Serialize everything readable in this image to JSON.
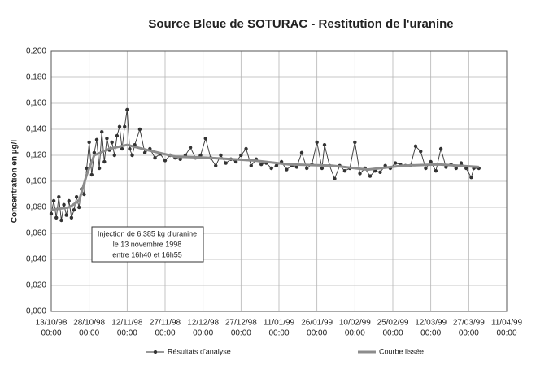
{
  "chart_data": {
    "type": "line",
    "title": "Source Bleue de SOTURAC - Restitution de l'uranine",
    "y_label": "Concentration en µg/l",
    "annotation": [
      "Injection de 6,385 kg d'uranine",
      "le 13 novembre 1998",
      "entre 16h40 et 16h55"
    ],
    "grid": true,
    "xlim": [
      "1998-10-13",
      "1999-04-11"
    ],
    "xticks": [
      {
        "value": "1998-10-13",
        "label": [
          "13/10/98",
          "00:00"
        ]
      },
      {
        "value": "1998-10-28",
        "label": [
          "28/10/98",
          "00:00"
        ]
      },
      {
        "value": "1998-11-12",
        "label": [
          "12/11/98",
          "00:00"
        ]
      },
      {
        "value": "1998-11-27",
        "label": [
          "27/11/98",
          "00:00"
        ]
      },
      {
        "value": "1998-12-12",
        "label": [
          "12/12/98",
          "00:00"
        ]
      },
      {
        "value": "1998-12-27",
        "label": [
          "27/12/98",
          "00:00"
        ]
      },
      {
        "value": "1999-01-11",
        "label": [
          "11/01/99",
          "00:00"
        ]
      },
      {
        "value": "1999-01-26",
        "label": [
          "26/01/99",
          "00:00"
        ]
      },
      {
        "value": "1999-02-10",
        "label": [
          "10/02/99",
          "00:00"
        ]
      },
      {
        "value": "1999-02-25",
        "label": [
          "25/02/99",
          "00:00"
        ]
      },
      {
        "value": "1999-03-12",
        "label": [
          "12/03/99",
          "00:00"
        ]
      },
      {
        "value": "1999-03-27",
        "label": [
          "27/03/99",
          "00:00"
        ]
      },
      {
        "value": "1999-04-11",
        "label": [
          "11/04/99",
          "00:00"
        ]
      }
    ],
    "ylim": [
      0,
      0.2
    ],
    "yticks": [
      {
        "value": 0,
        "label": "0,000"
      },
      {
        "value": 0.02,
        "label": "0,020"
      },
      {
        "value": 0.04,
        "label": "0,040"
      },
      {
        "value": 0.06,
        "label": "0,060"
      },
      {
        "value": 0.08,
        "label": "0,080"
      },
      {
        "value": 0.1,
        "label": "0,100"
      },
      {
        "value": 0.12,
        "label": "0,120"
      },
      {
        "value": 0.14,
        "label": "0,140"
      },
      {
        "value": 0.16,
        "label": "0,160"
      },
      {
        "value": 0.18,
        "label": "0,180"
      },
      {
        "value": 0.2,
        "label": "0,200"
      }
    ],
    "series": [
      {
        "name": "Résultats d'analyse",
        "color": "#333333",
        "markers": true,
        "x": [
          "1998-10-13",
          "1998-10-14",
          "1998-10-15",
          "1998-10-16",
          "1998-10-17",
          "1998-10-18",
          "1998-10-19",
          "1998-10-20",
          "1998-10-21",
          "1998-10-22",
          "1998-10-23",
          "1998-10-24",
          "1998-10-25",
          "1998-10-26",
          "1998-10-27",
          "1998-10-28",
          "1998-10-29",
          "1998-10-30",
          "1998-10-31",
          "1998-11-01",
          "1998-11-02",
          "1998-11-03",
          "1998-11-04",
          "1998-11-05",
          "1998-11-06",
          "1998-11-07",
          "1998-11-08",
          "1998-11-09",
          "1998-11-10",
          "1998-11-11",
          "1998-11-12",
          "1998-11-13",
          "1998-11-14",
          "1998-11-15",
          "1998-11-17",
          "1998-11-19",
          "1998-11-21",
          "1998-11-23",
          "1998-11-25",
          "1998-11-27",
          "1998-11-29",
          "1998-12-01",
          "1998-12-03",
          "1998-12-05",
          "1998-12-07",
          "1998-12-09",
          "1998-12-11",
          "1998-12-13",
          "1998-12-15",
          "1998-12-17",
          "1998-12-19",
          "1998-12-21",
          "1998-12-23",
          "1998-12-25",
          "1998-12-27",
          "1998-12-29",
          "1998-12-31",
          "1999-01-02",
          "1999-01-04",
          "1999-01-06",
          "1999-01-08",
          "1999-01-10",
          "1999-01-12",
          "1999-01-14",
          "1999-01-16",
          "1999-01-18",
          "1999-01-20",
          "1999-01-22",
          "1999-01-24",
          "1999-01-26",
          "1999-01-28",
          "1999-01-29",
          "1999-01-31",
          "1999-02-02",
          "1999-02-04",
          "1999-02-06",
          "1999-02-08",
          "1999-02-10",
          "1999-02-12",
          "1999-02-14",
          "1999-02-16",
          "1999-02-18",
          "1999-02-20",
          "1999-02-22",
          "1999-02-24",
          "1999-02-26",
          "1999-02-28",
          "1999-03-02",
          "1999-03-04",
          "1999-03-06",
          "1999-03-08",
          "1999-03-10",
          "1999-03-12",
          "1999-03-14",
          "1999-03-16",
          "1999-03-18",
          "1999-03-20",
          "1999-03-22",
          "1999-03-24",
          "1999-03-26",
          "1999-03-28",
          "1999-03-29",
          "1999-03-31"
        ],
        "values": [
          0.075,
          0.085,
          0.072,
          0.088,
          0.07,
          0.082,
          0.074,
          0.085,
          0.072,
          0.078,
          0.088,
          0.08,
          0.094,
          0.09,
          0.11,
          0.13,
          0.105,
          0.122,
          0.132,
          0.11,
          0.138,
          0.115,
          0.133,
          0.124,
          0.13,
          0.12,
          0.135,
          0.142,
          0.125,
          0.142,
          0.155,
          0.125,
          0.12,
          0.128,
          0.14,
          0.122,
          0.125,
          0.118,
          0.121,
          0.116,
          0.12,
          0.118,
          0.117,
          0.12,
          0.126,
          0.118,
          0.12,
          0.133,
          0.118,
          0.112,
          0.12,
          0.114,
          0.117,
          0.115,
          0.12,
          0.125,
          0.112,
          0.117,
          0.113,
          0.114,
          0.11,
          0.112,
          0.115,
          0.109,
          0.112,
          0.111,
          0.122,
          0.11,
          0.113,
          0.13,
          0.11,
          0.128,
          0.112,
          0.102,
          0.112,
          0.108,
          0.11,
          0.13,
          0.106,
          0.11,
          0.104,
          0.108,
          0.107,
          0.112,
          0.11,
          0.114,
          0.113,
          0.112,
          0.112,
          0.127,
          0.123,
          0.11,
          0.115,
          0.108,
          0.125,
          0.111,
          0.113,
          0.11,
          0.114,
          0.11,
          0.103,
          0.11,
          0.11
        ]
      },
      {
        "name": "Courbe lissée",
        "color": "#8c8c8c",
        "markers": false,
        "x": [
          "1998-10-13",
          "1998-10-20",
          "1998-10-24",
          "1998-10-27",
          "1998-10-30",
          "1998-11-05",
          "1998-11-12",
          "1998-11-20",
          "1998-12-01",
          "1998-12-15",
          "1999-01-01",
          "1999-01-15",
          "1999-02-01",
          "1999-02-15",
          "1999-03-01",
          "1999-03-15",
          "1999-03-31"
        ],
        "values": [
          0.078,
          0.08,
          0.085,
          0.105,
          0.12,
          0.125,
          0.128,
          0.124,
          0.119,
          0.118,
          0.116,
          0.113,
          0.112,
          0.109,
          0.112,
          0.113,
          0.111
        ]
      }
    ]
  }
}
